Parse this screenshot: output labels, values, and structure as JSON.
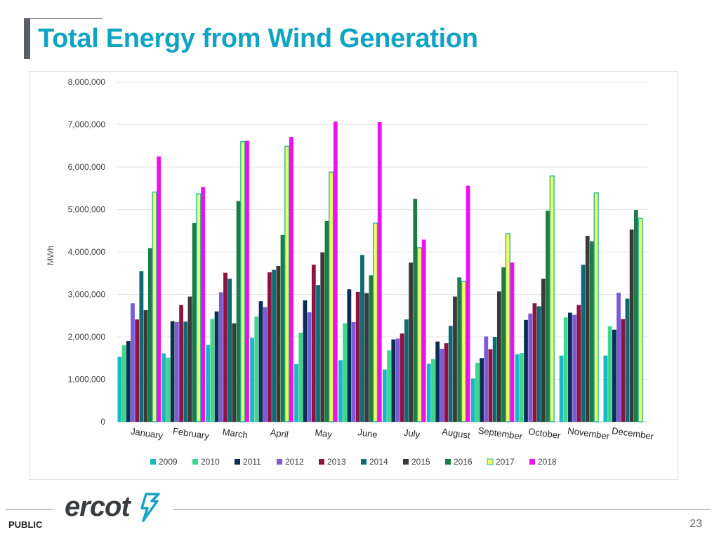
{
  "slide": {
    "title": "Total Energy from Wind Generation",
    "footer_label": "PUBLIC",
    "page_number": "23",
    "logo_text": "ercot"
  },
  "chart_data": {
    "type": "bar",
    "title": "",
    "xlabel": "",
    "ylabel": "MWh",
    "ylim": [
      0,
      8000000
    ],
    "yticks": [
      0,
      1000000,
      2000000,
      3000000,
      4000000,
      5000000,
      6000000,
      7000000,
      8000000
    ],
    "ytick_labels": [
      "0",
      "1,000,000",
      "2,000,000",
      "3,000,000",
      "4,000,000",
      "5,000,000",
      "6,000,000",
      "7,000,000",
      "8,000,000"
    ],
    "categories": [
      "January",
      "February",
      "March",
      "April",
      "May",
      "June",
      "July",
      "August",
      "September",
      "October",
      "November",
      "December"
    ],
    "legend_position": "bottom",
    "series": [
      {
        "name": "2009",
        "color": "#17b9c4",
        "values": [
          1530000,
          1610000,
          1810000,
          1980000,
          1360000,
          1450000,
          1230000,
          1370000,
          1020000,
          1590000,
          1560000,
          1560000
        ]
      },
      {
        "name": "2010",
        "color": "#3dd68c",
        "values": [
          1800000,
          1510000,
          2420000,
          2480000,
          2100000,
          2320000,
          1680000,
          1480000,
          1390000,
          1620000,
          2460000,
          2250000
        ]
      },
      {
        "name": "2011",
        "color": "#0b2e57",
        "values": [
          1900000,
          2370000,
          2600000,
          2840000,
          2860000,
          3120000,
          1940000,
          1890000,
          1500000,
          2400000,
          2570000,
          2170000
        ]
      },
      {
        "name": "2012",
        "color": "#7b5bd6",
        "values": [
          2790000,
          2350000,
          3050000,
          2700000,
          2580000,
          2350000,
          1960000,
          1720000,
          2010000,
          2550000,
          2520000,
          3040000
        ]
      },
      {
        "name": "2013",
        "color": "#8c1443",
        "values": [
          2410000,
          2750000,
          3510000,
          3520000,
          3700000,
          3060000,
          2080000,
          1850000,
          1710000,
          2790000,
          2750000,
          2420000
        ]
      },
      {
        "name": "2014",
        "color": "#0e6b73",
        "values": [
          3550000,
          2360000,
          3370000,
          3580000,
          3220000,
          3930000,
          2410000,
          2260000,
          2000000,
          2720000,
          3700000,
          2900000
        ]
      },
      {
        "name": "2015",
        "color": "#3a3a3a",
        "values": [
          2630000,
          2950000,
          2320000,
          3670000,
          3990000,
          3030000,
          3750000,
          2950000,
          3070000,
          3370000,
          4380000,
          4530000
        ]
      },
      {
        "name": "2016",
        "color": "#1f7a48",
        "values": [
          4090000,
          4680000,
          5200000,
          4400000,
          4730000,
          3450000,
          5250000,
          3400000,
          3640000,
          4970000,
          4250000,
          4990000
        ]
      },
      {
        "name": "2017",
        "color": "#f5ff5a",
        "values": [
          5410000,
          5370000,
          6600000,
          6490000,
          5880000,
          4680000,
          4100000,
          3310000,
          4430000,
          5790000,
          5390000,
          4790000
        ]
      },
      {
        "name": "2018",
        "color": "#ee10ee",
        "values": [
          6250000,
          5530000,
          6620000,
          6710000,
          7070000,
          7060000,
          4290000,
          5560000,
          3750000,
          null,
          null,
          null
        ]
      }
    ]
  }
}
